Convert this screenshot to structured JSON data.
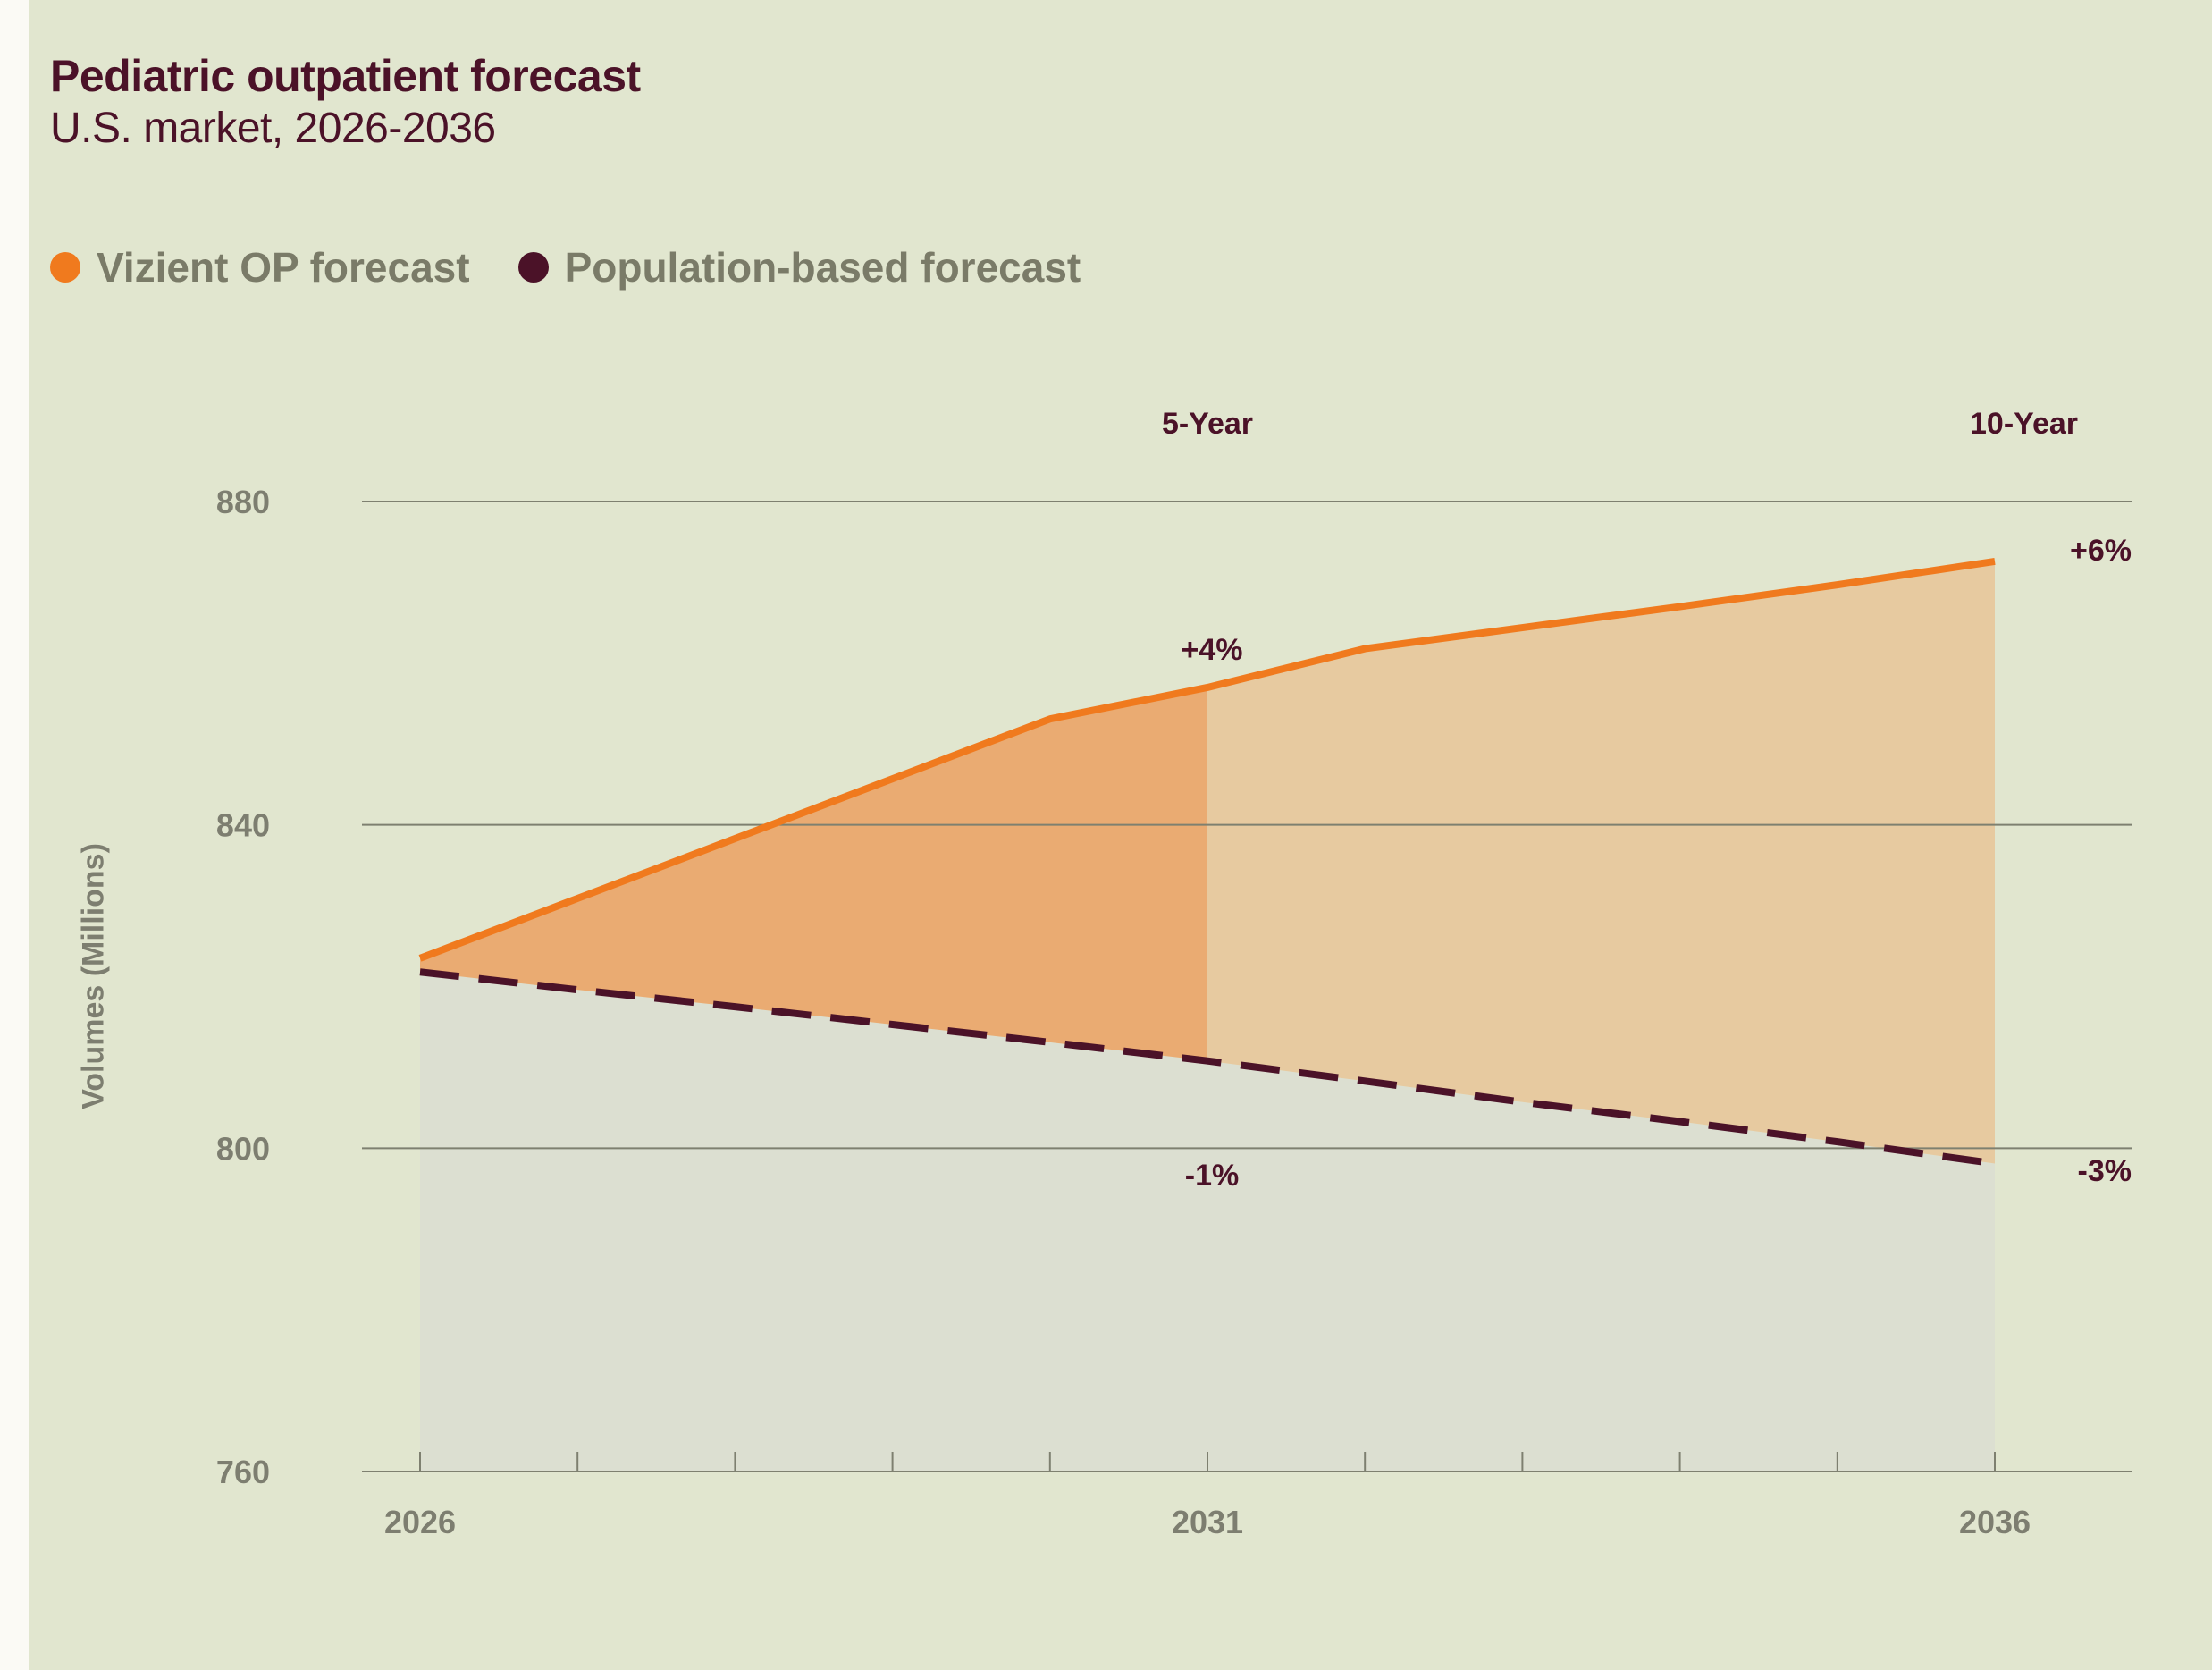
{
  "title": "Pediatric outpatient forecast",
  "subtitle": "U.S. market, 2026-2036",
  "legend": [
    {
      "label": "Vizient OP forecast",
      "color": "#f07a1e"
    },
    {
      "label": "Population-based forecast",
      "color": "#4b1228"
    }
  ],
  "colors": {
    "op_line": "#f07a1e",
    "pop_line": "#4b1228",
    "fill_5yr": "#eaab72",
    "fill_10yr": "#e7caa0",
    "fill_under": "#dcdfd1",
    "grid": "#7e8070",
    "text_dark": "#4b1228",
    "text_muted": "#7d7e70"
  },
  "chart_data": {
    "type": "area",
    "title": "Pediatric outpatient forecast",
    "subtitle": "U.S. market, 2026-2036",
    "xlabel": "",
    "ylabel": "Volumes (Millions)",
    "x": [
      2026,
      2027,
      2028,
      2029,
      2030,
      2031,
      2032,
      2033,
      2034,
      2035,
      2036
    ],
    "x_tick_labels": [
      "2026",
      "2031",
      "2036"
    ],
    "ylim": [
      760,
      880
    ],
    "yticks": [
      760,
      800,
      840,
      880
    ],
    "grid": "horizontal",
    "legend_position": "top-left",
    "series": [
      {
        "name": "Vizient OP forecast",
        "style": "solid",
        "values": [
          823.5,
          830.9,
          838.3,
          845.7,
          853.1,
          857.0,
          861.8,
          864.4,
          867.0,
          869.7,
          872.6
        ]
      },
      {
        "name": "Population-based forecast",
        "style": "dashed",
        "values": [
          821.8,
          819.6,
          817.5,
          815.3,
          813.1,
          810.8,
          808.3,
          805.7,
          803.3,
          800.8,
          798.1
        ]
      }
    ],
    "period_markers": [
      {
        "label": "5-Year",
        "x": 2031,
        "op_change": "+4%",
        "pop_change": "-1%"
      },
      {
        "label": "10-Year",
        "x": 2036,
        "op_change": "+6%",
        "pop_change": "-3%"
      }
    ]
  }
}
